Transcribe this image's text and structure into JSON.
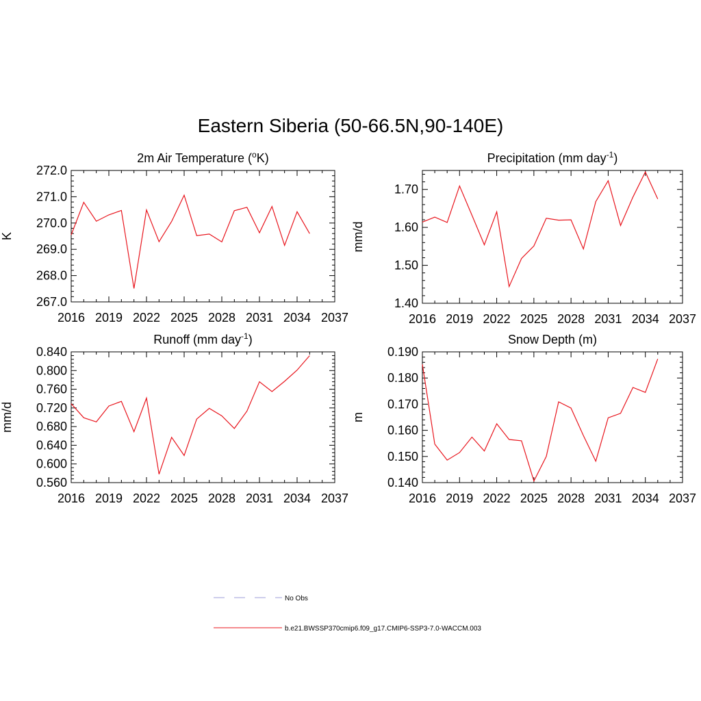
{
  "title": "Eastern Siberia (50-66.5N,90-140E)",
  "colors": {
    "series": "#e8141c",
    "no_obs": "#9b9bd9",
    "axis": "#000000"
  },
  "chart_data": [
    {
      "id": "temp",
      "type": "line",
      "title": "2m Air Temperature (",
      "title_sup": "o",
      "title_after": "K)",
      "ylabel": "K",
      "xlim": [
        2016,
        2037
      ],
      "ylim": [
        267.0,
        272.0
      ],
      "xticks": [
        "2016",
        "2019",
        "2022",
        "2025",
        "2028",
        "2031",
        "2034",
        "2037"
      ],
      "yticks": [
        "267.0",
        "268.0",
        "269.0",
        "270.0",
        "271.0",
        "272.0"
      ],
      "x": [
        2016,
        2017,
        2018,
        2019,
        2020,
        2021,
        2022,
        2023,
        2024,
        2025,
        2026,
        2027,
        2028,
        2029,
        2030,
        2031,
        2032,
        2033,
        2034,
        2035
      ],
      "values": [
        269.55,
        270.79,
        270.07,
        270.31,
        270.48,
        267.51,
        270.5,
        269.29,
        270.06,
        271.06,
        269.52,
        269.58,
        269.28,
        270.47,
        270.6,
        269.63,
        270.63,
        269.15,
        270.43,
        269.6
      ]
    },
    {
      "id": "precip",
      "type": "line",
      "title": "Precipitation (mm day",
      "title_sup": "-1",
      "title_after": ")",
      "ylabel": "mm/d",
      "xlim": [
        2016,
        2037
      ],
      "ylim": [
        1.4,
        1.75
      ],
      "xticks": [
        "2016",
        "2019",
        "2022",
        "2025",
        "2028",
        "2031",
        "2034",
        "2037"
      ],
      "yticks": [
        "1.40",
        "1.50",
        "1.60",
        "1.70"
      ],
      "x": [
        2016,
        2017,
        2018,
        2019,
        2020,
        2021,
        2022,
        2023,
        2024,
        2025,
        2026,
        2027,
        2028,
        2029,
        2030,
        2031,
        2032,
        2033,
        2034,
        2035
      ],
      "values": [
        1.614,
        1.627,
        1.613,
        1.709,
        1.632,
        1.554,
        1.641,
        1.444,
        1.518,
        1.551,
        1.624,
        1.619,
        1.62,
        1.543,
        1.668,
        1.723,
        1.605,
        1.68,
        1.746,
        1.675
      ]
    },
    {
      "id": "runoff",
      "type": "line",
      "title": "Runoff (mm day",
      "title_sup": "-1",
      "title_after": ")",
      "ylabel": "mm/d",
      "xlim": [
        2016,
        2037
      ],
      "ylim": [
        0.56,
        0.84
      ],
      "xticks": [
        "2016",
        "2019",
        "2022",
        "2025",
        "2028",
        "2031",
        "2034",
        "2037"
      ],
      "yticks": [
        "0.560",
        "0.600",
        "0.640",
        "0.680",
        "0.720",
        "0.760",
        "0.800",
        "0.840"
      ],
      "x": [
        2016,
        2017,
        2018,
        2019,
        2020,
        2021,
        2022,
        2023,
        2024,
        2025,
        2026,
        2027,
        2028,
        2029,
        2030,
        2031,
        2032,
        2033,
        2034,
        2035
      ],
      "values": [
        0.729,
        0.699,
        0.69,
        0.724,
        0.734,
        0.669,
        0.741,
        0.578,
        0.657,
        0.618,
        0.696,
        0.719,
        0.703,
        0.676,
        0.713,
        0.776,
        0.755,
        0.777,
        0.801,
        0.832
      ]
    },
    {
      "id": "snow",
      "type": "line",
      "title": "Snow Depth (m)",
      "title_sup": "",
      "title_after": "",
      "ylabel": "m",
      "xlim": [
        2016,
        2037
      ],
      "ylim": [
        0.14,
        0.19
      ],
      "xticks": [
        "2016",
        "2019",
        "2022",
        "2025",
        "2028",
        "2031",
        "2034",
        "2037"
      ],
      "yticks": [
        "0.140",
        "0.150",
        "0.160",
        "0.170",
        "0.180",
        "0.190"
      ],
      "x": [
        2016,
        2017,
        2018,
        2019,
        2020,
        2021,
        2022,
        2023,
        2024,
        2025,
        2026,
        2027,
        2028,
        2029,
        2030,
        2031,
        2032,
        2033,
        2034,
        2035
      ],
      "values": [
        0.1852,
        0.1547,
        0.1486,
        0.1515,
        0.1574,
        0.1521,
        0.1625,
        0.1565,
        0.156,
        0.1406,
        0.15,
        0.1709,
        0.1685,
        0.158,
        0.1482,
        0.1648,
        0.1665,
        0.1764,
        0.1745,
        0.1873
      ]
    }
  ],
  "legend": {
    "items": [
      {
        "label": "No Obs",
        "style": "dashed"
      },
      {
        "label": "b.e21.BWSSP370cmip6.f09_g17.CMIP6-SSP3-7.0-WACCM.003",
        "style": "solid"
      }
    ]
  }
}
